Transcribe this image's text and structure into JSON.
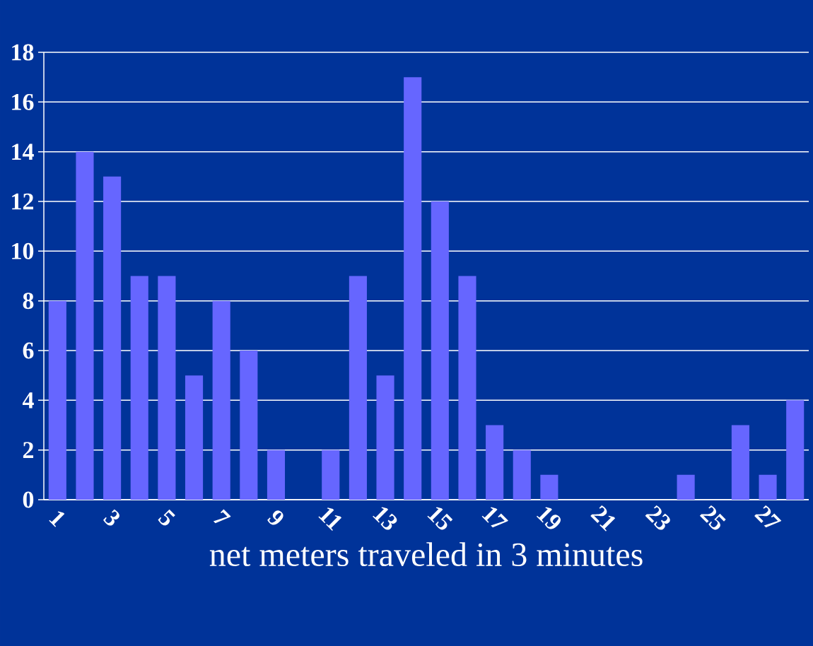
{
  "chart_data": {
    "type": "bar",
    "xlabel": "net meters traveled in 3 minutes",
    "categories": [
      "1",
      null,
      "3",
      null,
      "5",
      null,
      "7",
      null,
      "9",
      null,
      "11",
      null,
      "13",
      null,
      "15",
      null,
      "17",
      null,
      "19",
      null,
      "21",
      null,
      "23",
      null,
      "25",
      null,
      "27",
      null
    ],
    "values": [
      8,
      14,
      13,
      9,
      9,
      5,
      8,
      6,
      2,
      0,
      2,
      9,
      5,
      17,
      12,
      9,
      3,
      2,
      1,
      0,
      0,
      0,
      0,
      1,
      0,
      3,
      1,
      4
    ],
    "color": "#6666ff",
    "ylim": [
      0,
      18
    ],
    "yticks": [
      0,
      2,
      4,
      6,
      8,
      10,
      12,
      14,
      16,
      18
    ],
    "grid": "y"
  }
}
